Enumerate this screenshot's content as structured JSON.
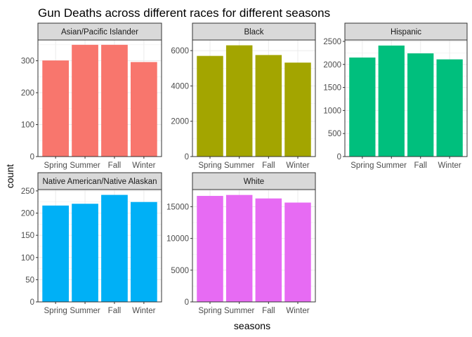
{
  "chart_data": {
    "type": "bar",
    "title": "Gun Deaths across different races for different seasons",
    "xlabel": "seasons",
    "ylabel": "count",
    "categories": [
      "Spring",
      "Summer",
      "Fall",
      "Winter"
    ],
    "grid": true,
    "legend": "none",
    "panels": [
      {
        "name": "Asian/Pacific Islander",
        "values": [
          301,
          350,
          350,
          296
        ],
        "ylim": [
          0,
          365
        ],
        "yticks": [
          0,
          100,
          200,
          300
        ],
        "color": "#F8766D"
      },
      {
        "name": "Black",
        "values": [
          5700,
          6300,
          5750,
          5320
        ],
        "ylim": [
          0,
          6600
        ],
        "yticks": [
          0,
          2000,
          4000,
          6000
        ],
        "color": "#A3A500"
      },
      {
        "name": "Hispanic",
        "values": [
          2150,
          2410,
          2240,
          2110
        ],
        "ylim": [
          0,
          2530
        ],
        "yticks": [
          0,
          500,
          1000,
          1500,
          2000,
          2500
        ],
        "color": "#00BF7D"
      },
      {
        "name": "Native American/Native Alaskan",
        "values": [
          217,
          221,
          241,
          225
        ],
        "ylim": [
          0,
          253
        ],
        "yticks": [
          0,
          50,
          100,
          150,
          200,
          250
        ],
        "color": "#00B0F6"
      },
      {
        "name": "White",
        "values": [
          16700,
          16850,
          16300,
          15650
        ],
        "ylim": [
          0,
          17700
        ],
        "yticks": [
          0,
          5000,
          10000,
          15000
        ],
        "color": "#E76BF3"
      }
    ]
  }
}
